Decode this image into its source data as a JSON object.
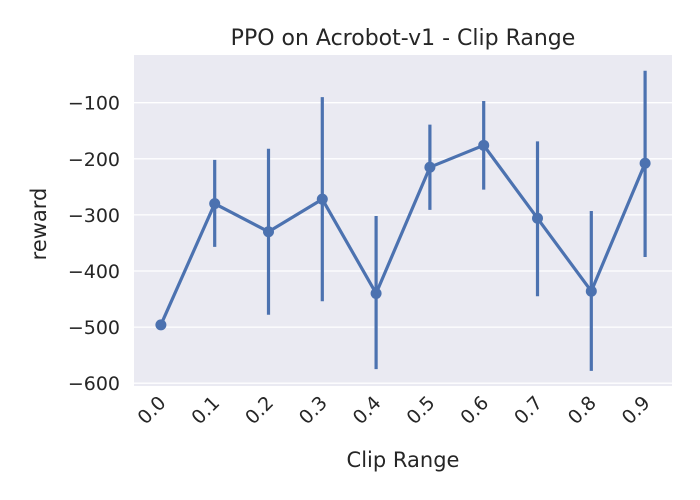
{
  "chart_data": {
    "type": "line",
    "title": "PPO on Acrobot-v1 - Clip Range",
    "xlabel": "Clip Range",
    "ylabel": "reward",
    "categories": [
      "0.0",
      "0.1",
      "0.2",
      "0.3",
      "0.4",
      "0.5",
      "0.6",
      "0.7",
      "0.8",
      "0.9"
    ],
    "series": [
      {
        "values": [
          -496,
          -280,
          -330,
          -272,
          -440,
          -215,
          -176,
          -306,
          -436,
          -208
        ],
        "ci_low": [
          -496,
          -357,
          -478,
          -454,
          -575,
          -291,
          -255,
          -445,
          -578,
          -375
        ],
        "ci_high": [
          -496,
          -202,
          -182,
          -90,
          -302,
          -139,
          -97,
          -169,
          -293,
          -43
        ]
      }
    ],
    "ylim": [
      -605,
      -15
    ],
    "yticks": [
      -600,
      -500,
      -400,
      -300,
      -200,
      -100
    ],
    "ytick_labels": [
      "−600",
      "−500",
      "−400",
      "−300",
      "−200",
      "−100"
    ],
    "grid": true,
    "colors": {
      "line": "#4c72b0",
      "background": "#eaeaf2",
      "grid": "#ffffff"
    }
  }
}
